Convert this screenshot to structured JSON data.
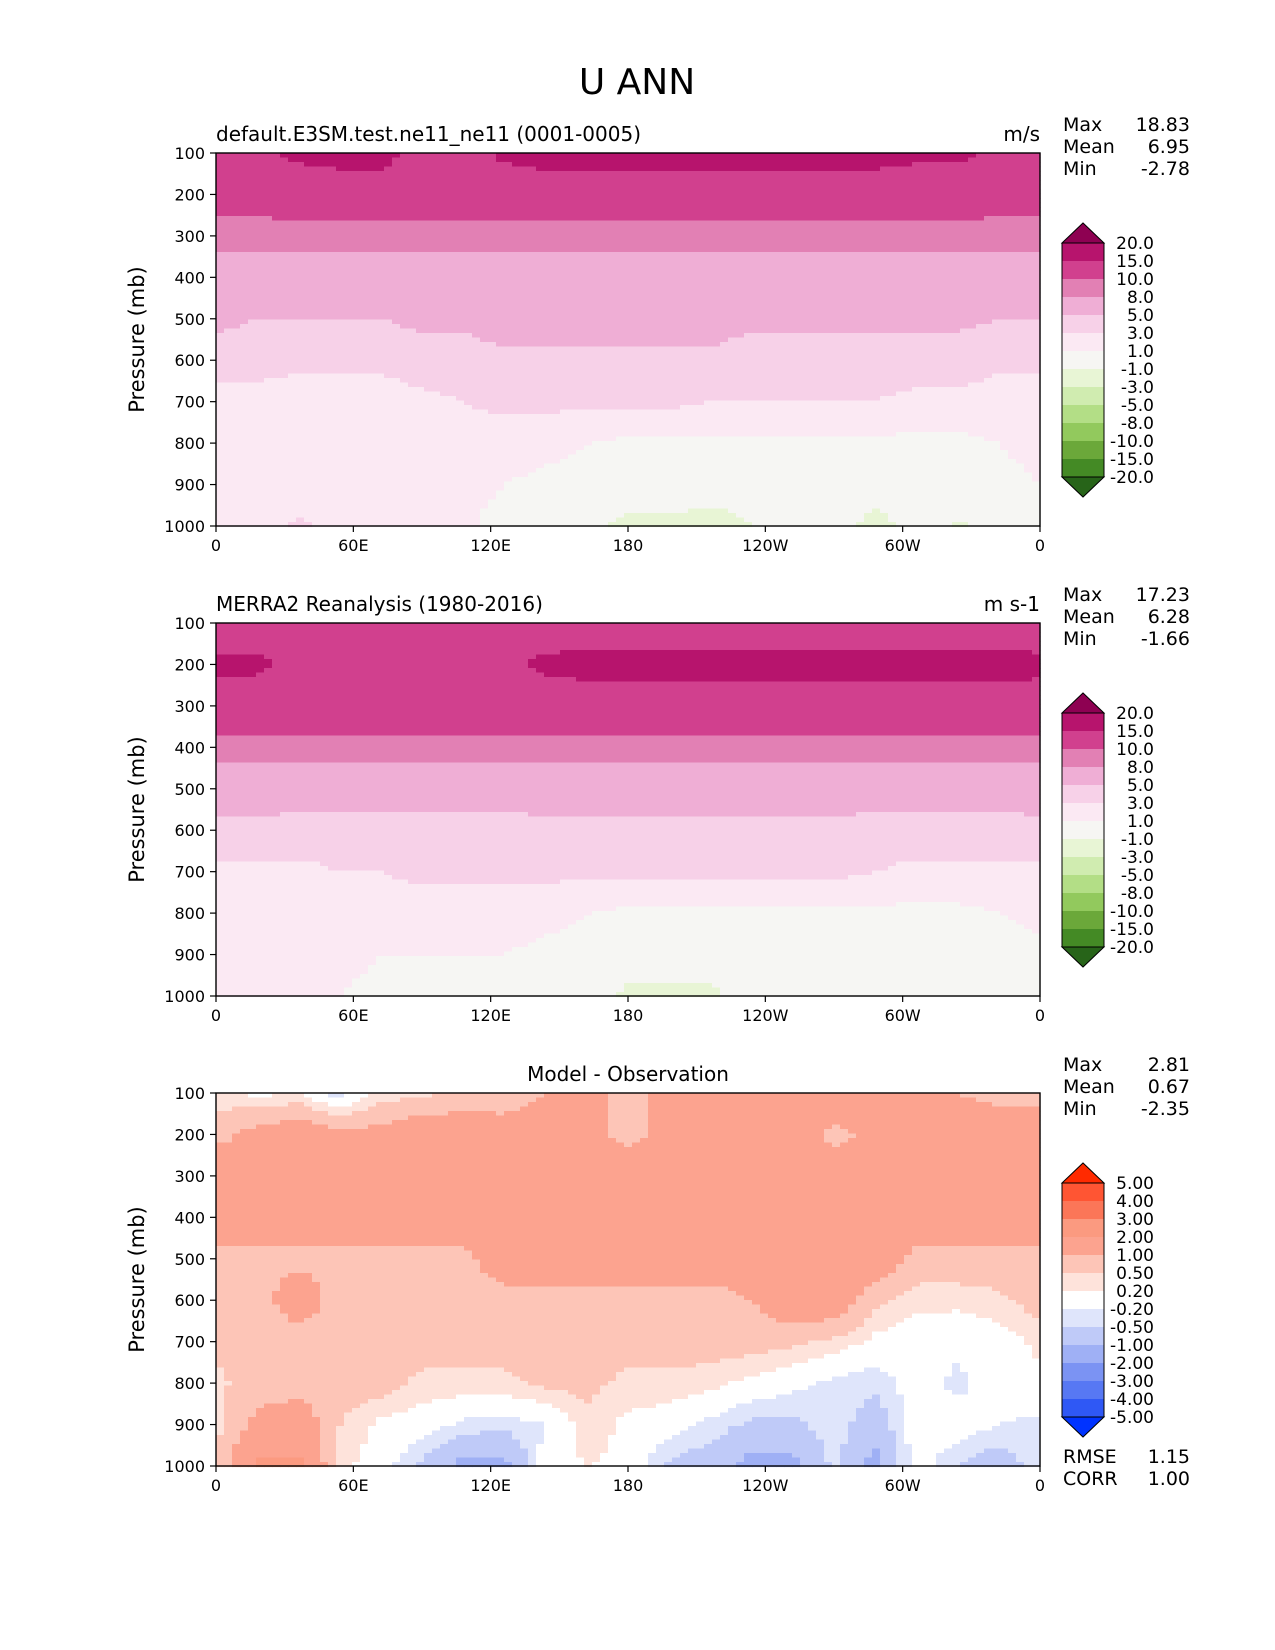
{
  "figure_title": "U ANN",
  "chart_data": [
    {
      "type": "heatmap",
      "name": "test",
      "title_left": "default.E3SM.test.ne11_ne11 (0001-0005)",
      "title_right": "m/s",
      "title_center": "",
      "ylabel": "Pressure (mb)",
      "xlabel": "",
      "xticks": [
        "0",
        "60E",
        "120E",
        "180",
        "120W",
        "60W",
        "0"
      ],
      "yticks": [
        "100",
        "200",
        "300",
        "400",
        "500",
        "600",
        "700",
        "800",
        "900",
        "1000"
      ],
      "xlim": [
        0,
        360
      ],
      "ylim": [
        1000,
        100
      ],
      "stats": {
        "max_label": "Max",
        "max": "18.83",
        "mean_label": "Mean",
        "mean": "6.95",
        "min_label": "Min",
        "min": "-2.78"
      },
      "colorbar": {
        "levels": [
          "20.0",
          "15.0",
          "10.0",
          "8.0",
          "5.0",
          "3.0",
          "1.0",
          "-1.0",
          "-3.0",
          "-5.0",
          "-8.0",
          "-10.0",
          "-15.0",
          "-20.0"
        ],
        "colors": [
          "#8e0152",
          "#b7146d",
          "#d1408e",
          "#e280b4",
          "#efaed5",
          "#f7d1e8",
          "#fbe9f3",
          "#f6f6f3",
          "#e8f5d5",
          "#d0ecb0",
          "#b3de86",
          "#92c95d",
          "#6ba83a",
          "#448a25",
          "#276419"
        ]
      },
      "field": {
        "z": [
          [
            12,
            14,
            16,
            17,
            17,
            13,
            13,
            16,
            17,
            17,
            17,
            17,
            17,
            17,
            17,
            17,
            17,
            16,
            16,
            14,
            12
          ],
          [
            11,
            11,
            12,
            12,
            12,
            12,
            12,
            12,
            12,
            12,
            12,
            12,
            12,
            12,
            12,
            12,
            12,
            12,
            12,
            11,
            11
          ],
          [
            9,
            9,
            9,
            9,
            9,
            9,
            9,
            9,
            9,
            9,
            9,
            9,
            9,
            9,
            9,
            9,
            9,
            9,
            9,
            9,
            9
          ],
          [
            6.5,
            6.5,
            6.5,
            6.5,
            6.5,
            6.5,
            6.5,
            6.5,
            6.5,
            6.5,
            6.5,
            6.5,
            6.5,
            6.5,
            6.5,
            6.5,
            6.5,
            6.5,
            6.5,
            6.5,
            6.5
          ],
          [
            5.5,
            5,
            5,
            5,
            5,
            5.5,
            5.5,
            6,
            6,
            6,
            6,
            6,
            6,
            5.5,
            5.5,
            5.5,
            5.5,
            5.5,
            5.5,
            5,
            5
          ],
          [
            4,
            4,
            3.5,
            3.5,
            3.5,
            4,
            4,
            4.5,
            4.5,
            4.5,
            4.5,
            4.5,
            4.5,
            4,
            4,
            4,
            4,
            4,
            4,
            3.5,
            3.5
          ],
          [
            2,
            2,
            2,
            2,
            2,
            2.5,
            3,
            3.5,
            3.5,
            3.5,
            3.5,
            3.5,
            3,
            3,
            3,
            3,
            3,
            2.5,
            2.5,
            2,
            2
          ],
          [
            1.5,
            1.5,
            1.5,
            1.5,
            1.5,
            1.5,
            2,
            2,
            1.5,
            1,
            0.5,
            0.5,
            0.5,
            0.5,
            0.5,
            0.5,
            0.5,
            0.5,
            0.5,
            1,
            1.5
          ],
          [
            1.5,
            1.5,
            1.5,
            1.5,
            1.5,
            1.5,
            1.5,
            1,
            0.5,
            0.5,
            0,
            0,
            -0.5,
            -0.5,
            0,
            0,
            -0.5,
            0,
            0,
            0.5,
            1
          ],
          [
            1.2,
            1.5,
            3.5,
            2,
            1.5,
            1.5,
            1.2,
            0.5,
            0,
            -0.5,
            -1.5,
            -1.5,
            -1.5,
            -1,
            -0.5,
            -0.5,
            -1.5,
            -0.5,
            -1.2,
            -0.5,
            0
          ]
        ]
      }
    },
    {
      "type": "heatmap",
      "name": "reference",
      "title_left": "MERRA2 Reanalysis (1980-2016)",
      "title_right": "m s-1",
      "title_center": "",
      "ylabel": "Pressure (mb)",
      "xlabel": "",
      "xticks": [
        "0",
        "60E",
        "120E",
        "180",
        "120W",
        "60W",
        "0"
      ],
      "yticks": [
        "100",
        "200",
        "300",
        "400",
        "500",
        "600",
        "700",
        "800",
        "900",
        "1000"
      ],
      "xlim": [
        0,
        360
      ],
      "ylim": [
        1000,
        100
      ],
      "stats": {
        "max_label": "Max",
        "max": "17.23",
        "mean_label": "Mean",
        "mean": "6.28",
        "min_label": "Min",
        "min": "-1.66"
      },
      "colorbar": {
        "levels": [
          "20.0",
          "15.0",
          "10.0",
          "8.0",
          "5.0",
          "3.0",
          "1.0",
          "-1.0",
          "-3.0",
          "-5.0",
          "-8.0",
          "-10.0",
          "-15.0",
          "-20.0"
        ],
        "colors": [
          "#8e0152",
          "#b7146d",
          "#d1408e",
          "#e280b4",
          "#efaed5",
          "#f7d1e8",
          "#fbe9f3",
          "#f6f6f3",
          "#e8f5d5",
          "#d0ecb0",
          "#b3de86",
          "#92c95d",
          "#6ba83a",
          "#448a25",
          "#276419"
        ]
      },
      "field": {
        "z": [
          [
            11,
            12,
            12,
            11,
            11,
            11,
            11,
            11,
            12,
            12,
            12,
            12,
            12,
            12,
            12,
            12,
            12,
            12,
            12,
            12,
            12
          ],
          [
            16,
            16,
            14,
            13,
            13,
            13,
            13,
            14,
            16,
            17,
            17,
            17,
            17,
            17,
            17,
            17,
            17,
            17,
            17,
            17,
            16
          ],
          [
            13,
            12,
            12,
            12,
            12,
            12,
            12,
            12,
            12,
            12,
            12,
            12,
            12,
            12,
            12,
            12,
            12,
            12,
            12,
            12,
            13
          ],
          [
            9,
            9,
            9,
            9,
            9,
            9,
            9,
            9,
            9,
            9,
            9,
            9,
            9,
            9,
            9,
            9,
            9,
            9,
            9,
            9,
            9
          ],
          [
            6,
            6,
            6,
            6,
            6,
            6,
            6,
            6,
            6,
            6,
            6,
            6,
            6,
            6,
            6,
            6,
            6,
            6,
            6,
            6,
            6
          ],
          [
            4.5,
            4.5,
            4.2,
            4,
            4,
            4,
            4,
            4.2,
            4.5,
            4.5,
            4.5,
            4.5,
            4.5,
            4.5,
            4.5,
            4.5,
            4.2,
            4.2,
            4.2,
            4.2,
            4.5
          ],
          [
            2.5,
            2.5,
            2.5,
            3,
            3,
            3.5,
            3.5,
            3.5,
            3.5,
            3.5,
            3.5,
            3.5,
            3.5,
            3.5,
            3.5,
            3.5,
            3,
            2.5,
            2.5,
            2.5,
            2.5
          ],
          [
            2,
            2,
            2,
            2,
            2,
            2,
            2,
            2,
            1.5,
            1,
            0.5,
            0.5,
            0.5,
            0.5,
            0.5,
            0.5,
            0.5,
            0.5,
            0.5,
            1,
            1.5
          ],
          [
            2,
            2,
            1.5,
            1.5,
            1,
            1,
            1,
            1,
            0.5,
            0.5,
            0,
            0,
            -0.5,
            -0.5,
            0,
            0,
            0,
            0,
            0,
            0,
            0.5
          ],
          [
            1.5,
            1.5,
            1.5,
            1,
            0.5,
            0.5,
            0.5,
            0.5,
            0,
            0,
            -1.5,
            -1.5,
            -1.2,
            -0.5,
            0,
            0,
            0,
            0,
            -0.5,
            0,
            0
          ]
        ]
      }
    },
    {
      "type": "heatmap",
      "name": "difference",
      "title_left": "",
      "title_right": "",
      "title_center": "Model - Observation",
      "ylabel": "Pressure (mb)",
      "xlabel": "",
      "xticks": [
        "0",
        "60E",
        "120E",
        "180",
        "120W",
        "60W",
        "0"
      ],
      "yticks": [
        "100",
        "200",
        "300",
        "400",
        "500",
        "600",
        "700",
        "800",
        "900",
        "1000"
      ],
      "xlim": [
        0,
        360
      ],
      "ylim": [
        1000,
        100
      ],
      "stats": {
        "max_label": "Max",
        "max": "2.81",
        "mean_label": "Mean",
        "mean": "0.67",
        "min_label": "Min",
        "min": "-2.35"
      },
      "extra_stats": {
        "rmse_label": "RMSE",
        "rmse": "1.15",
        "corr_label": "CORR",
        "corr": "1.00"
      },
      "colorbar": {
        "levels": [
          "5.00",
          "4.00",
          "3.00",
          "2.00",
          "1.00",
          "0.50",
          "0.20",
          "-0.20",
          "-0.50",
          "-1.00",
          "-2.00",
          "-3.00",
          "-4.00",
          "-5.00"
        ],
        "colors": [
          "#ff2a00",
          "#ff5533",
          "#fb7658",
          "#fb9a80",
          "#fca38f",
          "#fdc5b7",
          "#fee3db",
          "#ffffff",
          "#dfe5fb",
          "#bfcaf8",
          "#9fb0f5",
          "#7b93f3",
          "#5778f3",
          "#2f58f5",
          "#0033ff"
        ]
      },
      "field": {
        "z": [
          [
            0.3,
            0.1,
            0.2,
            -0.4,
            0.3,
            0.4,
            0.6,
            0.8,
            1,
            1,
            1,
            1,
            1.5,
            1.5,
            1.5,
            1.5,
            1.5,
            1,
            1,
            0.8,
            0.8
          ],
          [
            0.8,
            1.2,
            1.5,
            1.2,
            1.2,
            1.5,
            1.5,
            1.2,
            1.2,
            1.2,
            0.8,
            1.2,
            1.5,
            1.5,
            1.5,
            0.8,
            1.2,
            1.5,
            1.5,
            1.5,
            1.5
          ],
          [
            1.5,
            1.5,
            1.5,
            1.5,
            1.5,
            1.5,
            1.5,
            1.5,
            1.5,
            1.5,
            1.5,
            1.5,
            1.5,
            1.5,
            1.5,
            1.5,
            1.5,
            1.5,
            1.5,
            1.5,
            1.5
          ],
          [
            1.5,
            1.5,
            1.5,
            1.5,
            1.5,
            1.5,
            1.5,
            1.5,
            1.5,
            1.5,
            1.5,
            1.5,
            1.5,
            1.5,
            1.5,
            1.5,
            1.5,
            1.5,
            1.5,
            1.5,
            1.5
          ],
          [
            0.8,
            0.8,
            0.8,
            0.8,
            0.8,
            0.8,
            0.8,
            1.5,
            1.5,
            1.5,
            1.5,
            1.5,
            1.5,
            1.5,
            1.5,
            1.5,
            1.5,
            0.8,
            0.8,
            0.8,
            0.8
          ],
          [
            0.7,
            0.7,
            1.5,
            0.7,
            0.7,
            0.7,
            0.7,
            0.7,
            0.7,
            0.7,
            0.7,
            0.7,
            0.7,
            1,
            1.5,
            1.5,
            0.6,
            0.3,
            0.3,
            0.4,
            0.7
          ],
          [
            0.6,
            0.6,
            0.6,
            0.6,
            0.6,
            0.7,
            0.7,
            0.7,
            0.7,
            0.7,
            0.7,
            0.7,
            0.7,
            0.7,
            0.6,
            0.4,
            0.1,
            0,
            -0.1,
            0,
            0.3
          ],
          [
            0.4,
            0.7,
            0.7,
            0.7,
            0.7,
            0.4,
            0.4,
            0.4,
            0.6,
            0.6,
            0.4,
            0.4,
            0.3,
            0.1,
            -0.1,
            -0.3,
            -0.4,
            0,
            -0.3,
            0,
            0.1
          ],
          [
            0.4,
            1.2,
            1.5,
            0.5,
            0.1,
            0,
            -0.3,
            -0.4,
            -0.2,
            0.4,
            0.1,
            0,
            -0.3,
            -0.6,
            -0.6,
            -0.3,
            -0.8,
            0,
            0,
            -0.2,
            -0.3
          ],
          [
            0.4,
            2.2,
            2.2,
            0.3,
            0,
            -0.6,
            -1.2,
            -1.2,
            0,
            0.2,
            0.1,
            -0.6,
            -0.8,
            -1.2,
            -1.2,
            -0.4,
            -1.2,
            0,
            -0.5,
            -0.8,
            -0.3
          ]
        ]
      }
    }
  ]
}
